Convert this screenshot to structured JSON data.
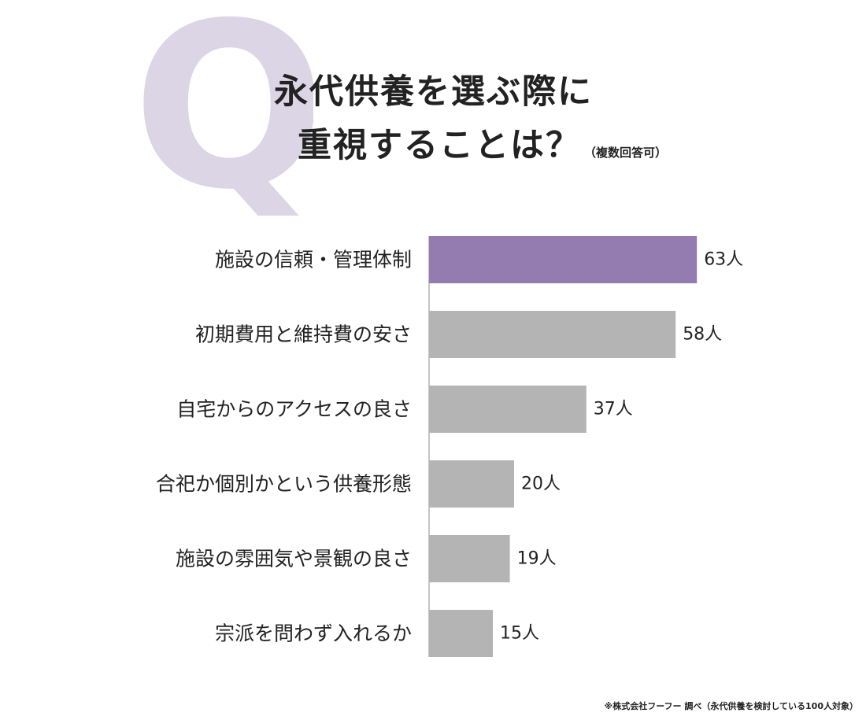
{
  "colors": {
    "highlight_bar": "#947bb0",
    "bar": "#b4b4b4",
    "axis": "#b4b4b4",
    "q_letter": "#dcd5e6",
    "text": "#222222"
  },
  "q_mark": "Q",
  "title": {
    "line1": "永代供養を選ぶ際に",
    "line2": "重視することは？",
    "note": "（複数回答可）"
  },
  "chart_data": {
    "type": "bar",
    "orientation": "horizontal",
    "categories": [
      "施設の信頼・管理体制",
      "初期費用と維持費の安さ",
      "自宅からのアクセスの良さ",
      "合祀か個別かという供養形態",
      "施設の雰囲気や景観の良さ",
      "宗派を問わず入れるか"
    ],
    "values": [
      63,
      58,
      37,
      20,
      19,
      15
    ],
    "unit": "人",
    "highlight_index": 0,
    "grid": false,
    "legend": "none"
  },
  "footnote": "※株式会社フーフー 調べ（永代供養を検討している100人対象）"
}
